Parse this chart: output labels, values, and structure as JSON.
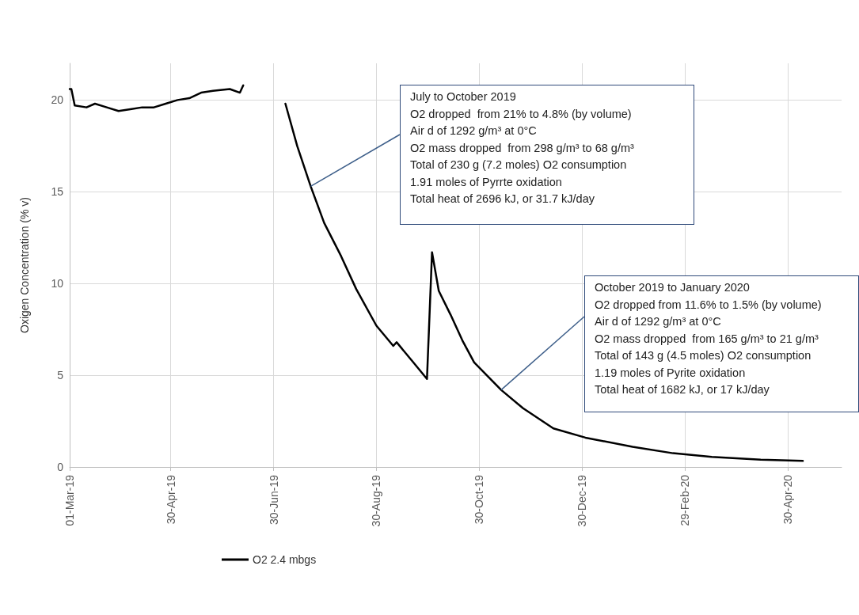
{
  "chart_data": {
    "type": "line",
    "ylabel": "Oxigen Concentration (% v)",
    "xlim": [
      "2019-03-01",
      "2020-06-01"
    ],
    "xticks": [
      {
        "value": "2019-03-01",
        "label": "01-Mar-19"
      },
      {
        "value": "2019-04-30",
        "label": "30-Apr-19"
      },
      {
        "value": "2019-06-30",
        "label": "30-Jun-19"
      },
      {
        "value": "2019-08-30",
        "label": "30-Aug-19"
      },
      {
        "value": "2019-10-30",
        "label": "30-Oct-19"
      },
      {
        "value": "2019-12-30",
        "label": "30-Dec-19"
      },
      {
        "value": "2020-02-29",
        "label": "29-Feb-20"
      },
      {
        "value": "2020-04-30",
        "label": "30-Apr-20"
      }
    ],
    "ylim": [
      0,
      22
    ],
    "yticks": [
      0,
      5,
      10,
      15,
      20
    ],
    "grid": true,
    "legend": "bottom left",
    "marker": "none",
    "line_style": "solid",
    "x": [
      "2019-03-01",
      "2019-03-02",
      "2019-03-04",
      "2019-03-11",
      "2019-03-16",
      "2019-03-23",
      "2019-03-30",
      "2019-04-06",
      "2019-04-13",
      "2019-04-20",
      "2019-04-27",
      "2019-05-04",
      "2019-05-11",
      "2019-05-18",
      "2019-05-25",
      "2019-06-04",
      "2019-06-10",
      "2019-06-12",
      "2019-06-13",
      "2019-06-20",
      "2019-07-01",
      "2019-07-07",
      "2019-07-14",
      "2019-07-22",
      "2019-07-30",
      "2019-08-09",
      "2019-08-18",
      "2019-08-30",
      "2019-09-09",
      "2019-09-11",
      "2019-09-20",
      "2019-09-29",
      "2019-10-02",
      "2019-10-06",
      "2019-10-13",
      "2019-10-20",
      "2019-10-27",
      "2019-11-12",
      "2019-11-25",
      "2019-12-13",
      "2020-01-01",
      "2020-01-29",
      "2020-02-22",
      "2020-03-16",
      "2020-04-14",
      "2020-05-09"
    ],
    "series": [
      {
        "name": "O2 2.4 mbgs",
        "color": "#000000",
        "values": [
          20.6,
          20.6,
          19.7,
          19.6,
          19.8,
          19.6,
          19.4,
          19.5,
          19.6,
          19.6,
          19.8,
          20.0,
          20.1,
          20.4,
          20.5,
          20.6,
          20.4,
          20.8,
          null,
          null,
          null,
          19.8,
          17.5,
          15.3,
          13.3,
          11.5,
          9.7,
          7.7,
          6.6,
          6.8,
          5.8,
          4.8,
          11.7,
          9.6,
          8.3,
          6.9,
          5.7,
          4.2,
          3.2,
          2.1,
          1.6,
          1.1,
          0.75,
          0.55,
          0.4,
          0.33
        ]
      }
    ],
    "annotations": [
      {
        "text": "July to October 2019\nO2 dropped  from 21% to 4.8% (by volume)\nAir d of 1292 g/m³ at 0°C\nO2 mass dropped  from 298 g/m³ to 68 g/m³\nTotal of 230 g (7.2 moles) O2 consumption\n1.91 moles of Pyrrte oxidation\nTotal heat of 2696 kJ, or 31.7 kJ/day",
        "x": "2019-07-22",
        "y": 15.3
      },
      {
        "text": "October 2019 to January 2020\nO2 dropped from 11.6% to 1.5% (by volume)\nAir d of 1292 g/m³ at 0°C\nO2 mass dropped  from 165 g/m³ to 21 g/m³\nTotal of 143 g (4.5 moles) O2 consumption\n1.19 moles of Pyrite oxidation\nTotal heat of 1682 kJ, or 17 kJ/day",
        "x": "2019-11-12",
        "y": 4.2
      }
    ]
  }
}
